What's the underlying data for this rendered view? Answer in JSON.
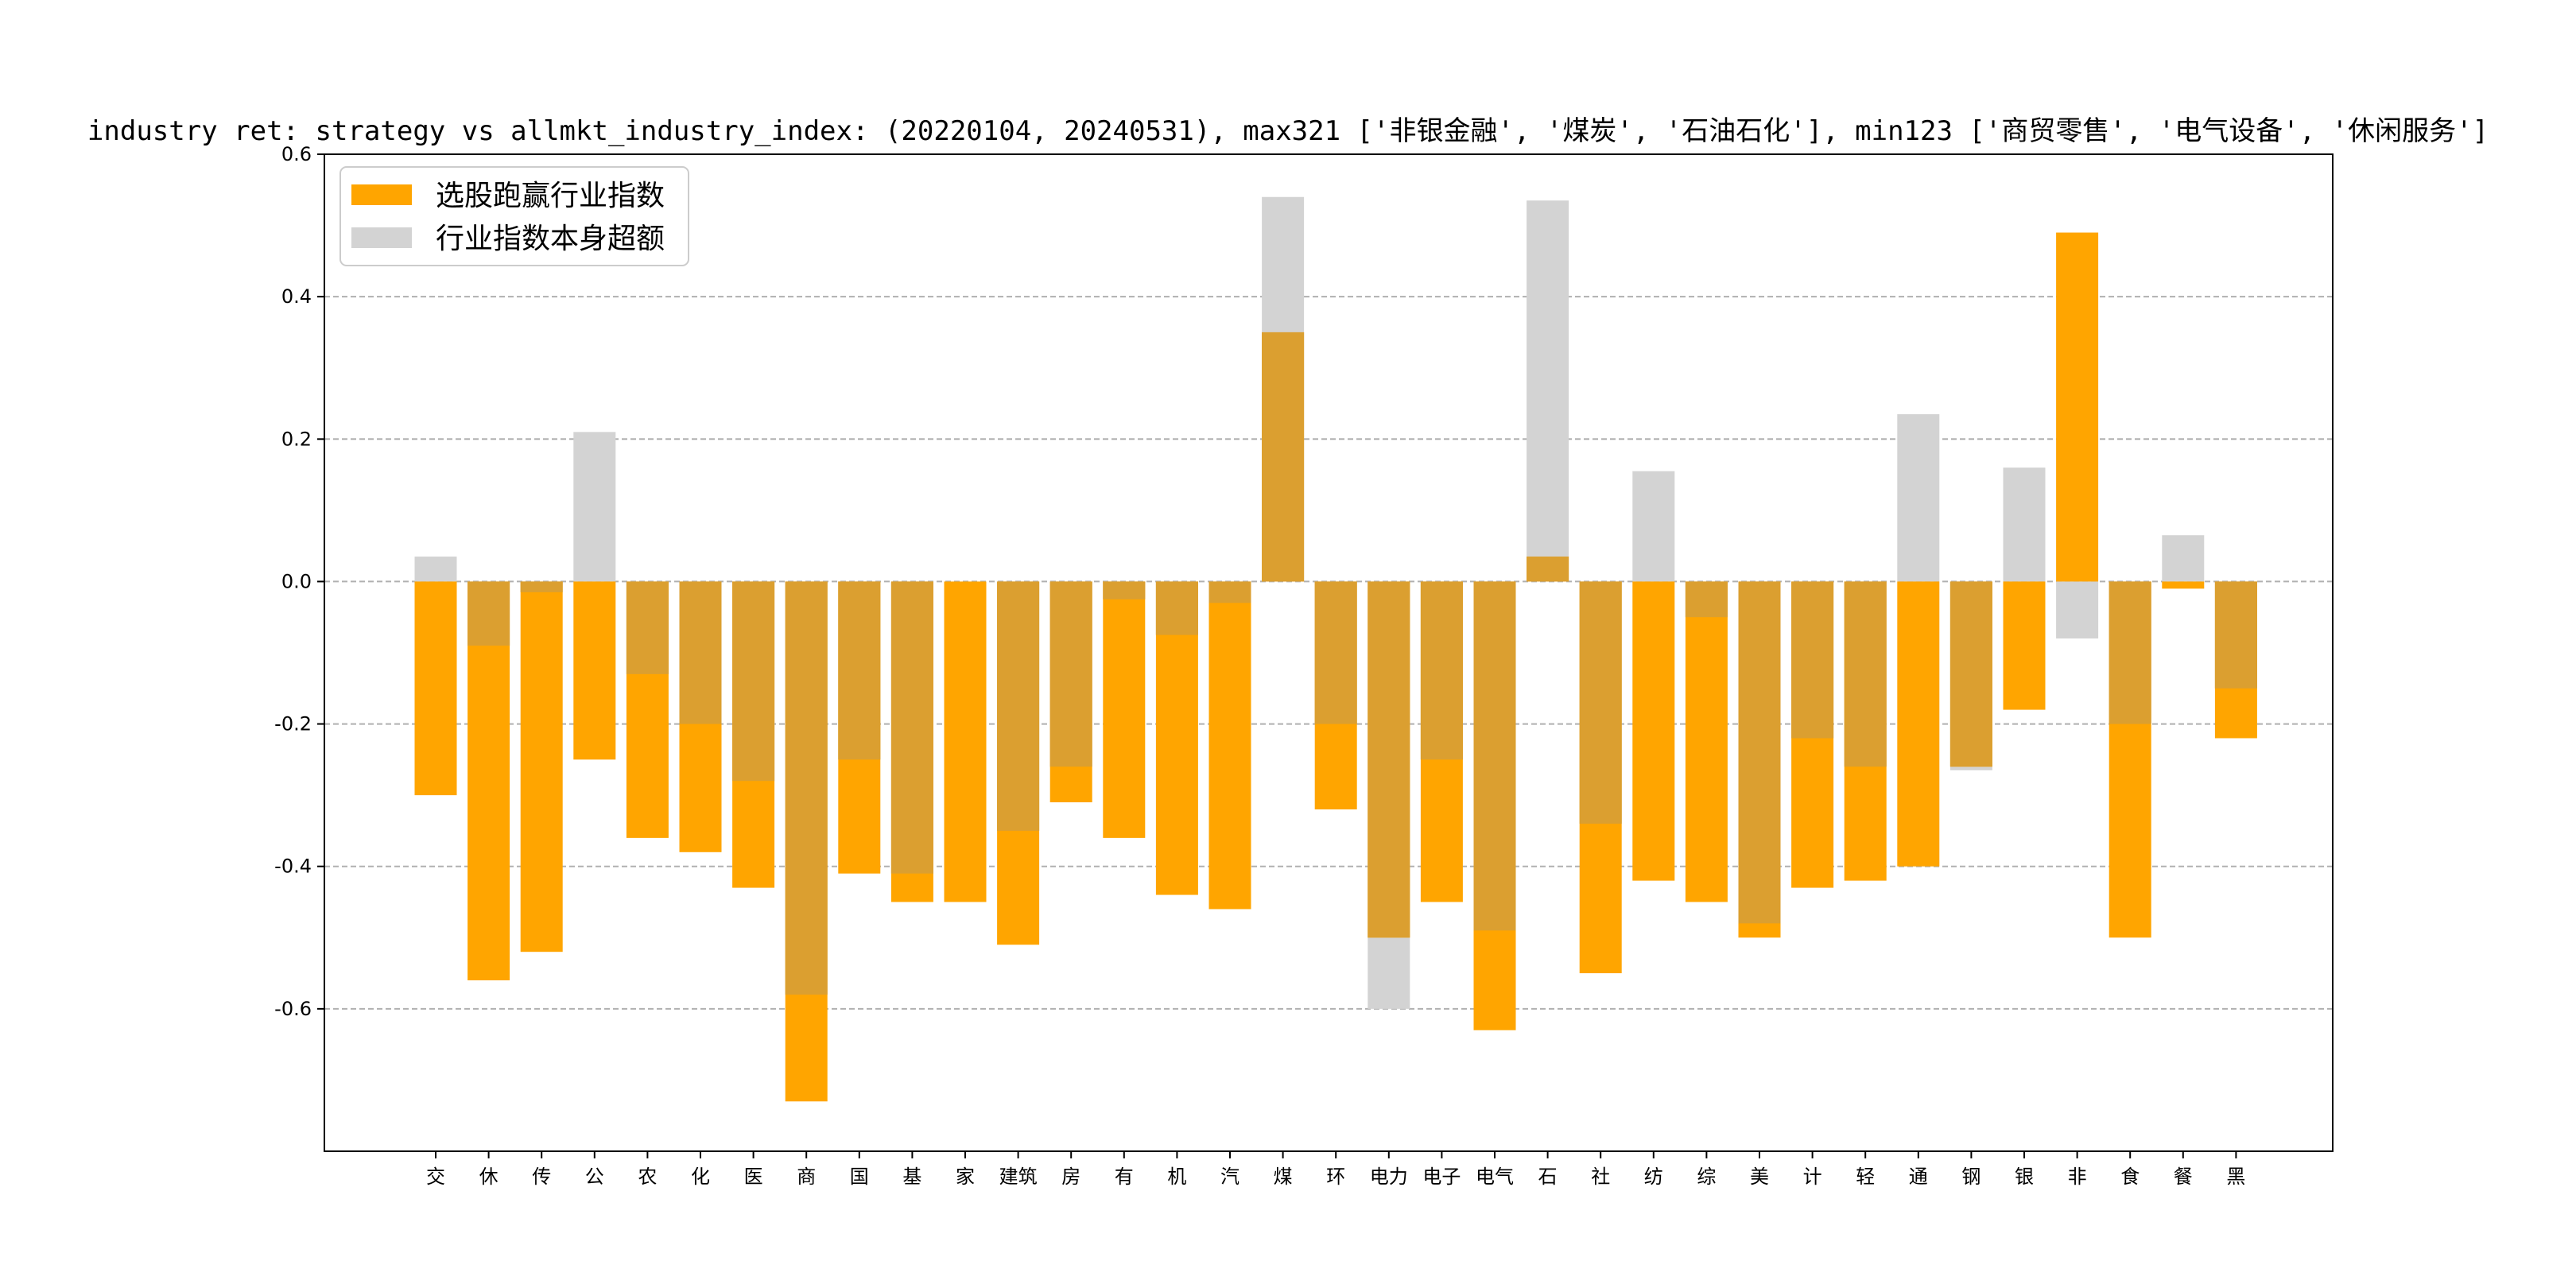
{
  "chart_data": {
    "type": "bar",
    "title": "industry ret: strategy vs allmkt_industry_index: (20220104, 20240531), max321 ['非银金融', '煤炭', '石油石化'], min123 ['商贸零售', '电气设备', '休闲服务']",
    "xlabel": "",
    "ylabel": "",
    "ylim": [
      -0.8,
      0.6
    ],
    "yticks": [
      -0.6,
      -0.4,
      -0.2,
      0.0,
      0.2,
      0.4,
      0.6
    ],
    "ytick_labels": [
      "-0.6",
      "-0.4",
      "-0.2",
      "0.0",
      "0.2",
      "0.4",
      "0.6"
    ],
    "grid": "horizontal dashed",
    "legend_position": "top-left",
    "colors": {
      "strategy": "#FFA500",
      "index": "#D3D3D3",
      "overlap": "#DB9F30"
    },
    "categories": [
      "交",
      "休",
      "传",
      "公",
      "农",
      "化",
      "医",
      "商",
      "国",
      "基",
      "家",
      "建筑",
      "房",
      "有",
      "机",
      "汽",
      "煤",
      "环",
      "电力",
      "电子",
      "电气",
      "石",
      "社",
      "纺",
      "综",
      "美",
      "计",
      "轻",
      "通",
      "钢",
      "银",
      "非",
      "食",
      "餐",
      "黑"
    ],
    "series": [
      {
        "name": "选股跑赢行业指数",
        "values": [
          -0.3,
          -0.56,
          -0.52,
          -0.25,
          -0.36,
          -0.38,
          -0.43,
          -0.73,
          -0.41,
          -0.45,
          -0.45,
          -0.51,
          -0.31,
          -0.36,
          -0.44,
          -0.46,
          0.35,
          -0.32,
          -0.5,
          -0.45,
          -0.63,
          0.035,
          -0.55,
          -0.42,
          -0.45,
          -0.5,
          -0.43,
          -0.42,
          -0.4,
          -0.26,
          -0.18,
          0.49,
          -0.5,
          -0.01,
          -0.22
        ]
      },
      {
        "name": "行业指数本身超额",
        "values": [
          0.035,
          -0.09,
          -0.015,
          0.21,
          -0.13,
          -0.2,
          -0.28,
          -0.58,
          -0.25,
          -0.41,
          0.0,
          -0.35,
          -0.26,
          -0.025,
          -0.075,
          -0.03,
          0.54,
          -0.2,
          -0.6,
          -0.25,
          -0.49,
          0.535,
          -0.34,
          0.155,
          -0.05,
          -0.48,
          -0.22,
          -0.26,
          0.235,
          -0.265,
          0.16,
          -0.08,
          -0.2,
          0.065,
          -0.15
        ]
      }
    ]
  }
}
